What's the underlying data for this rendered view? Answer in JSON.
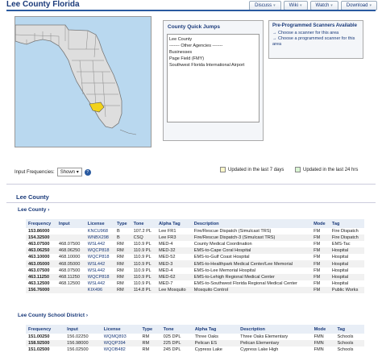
{
  "page": {
    "title": "Lee County Florida"
  },
  "top_buttons": [
    {
      "label": "Discuss"
    },
    {
      "label": "Wiki"
    },
    {
      "label": "Watch"
    },
    {
      "label": "Download"
    }
  ],
  "quick_jumps": {
    "title": "County Quick Jumps",
    "items": [
      "Lee County",
      "------- Other Agencies -------",
      "Businesses",
      "Page Field (FMY)",
      "Southwest Florida International Airport"
    ]
  },
  "preprogrammed": {
    "title": "Pre-Programmed Scanners Available",
    "links": [
      "→ Choose a scanner for this area",
      "→ Choose a programmed scanner for this area"
    ]
  },
  "filters": {
    "label": "Input Frequencies:",
    "selected": "Shown",
    "legend_yellow": "Updated in the last 7 days",
    "legend_green": "Updated in the last 24 hrs",
    "colors": {
      "yellow": "#fdf7c8",
      "green": "#d9f5d3"
    }
  },
  "section": {
    "title": "Lee County"
  },
  "lee_county": {
    "title": "Lee County ›",
    "headers": [
      "Frequency",
      "Input",
      "License",
      "Type",
      "Tone",
      "Alpha Tag",
      "Description",
      "Mode",
      "Tag"
    ],
    "rows": [
      [
        "153.86000",
        "",
        "KNCU968",
        "B",
        "107.2 PL",
        "Lee FR1",
        "Fire/Rescue Dispatch (Simulcast TRS)",
        "FM",
        "Fire Dispatch"
      ],
      [
        "154.32500",
        "",
        "WNBX298",
        "B",
        "CSQ",
        "Lee FR3",
        "Fire/Rescue Dispatch-3 (Simulcast TRS)",
        "FM",
        "Fire Dispatch"
      ],
      [
        "463.07500",
        "468.07500",
        "WSL442",
        "RM",
        "110.9 PL",
        "MED-4",
        "County Medical Coordination",
        "FM",
        "EMS-Tac"
      ],
      [
        "463.06250",
        "468.06250",
        "WQCP818",
        "RM",
        "110.9 PL",
        "MED-32",
        "EMS-to-Cape Coral Hospital",
        "FM",
        "Hospital"
      ],
      [
        "463.10000",
        "468.10000",
        "WQCP818",
        "RM",
        "110.9 PL",
        "MED-52",
        "EMS-to-Gulf Coast Hospital",
        "FM",
        "Hospital"
      ],
      [
        "463.05000",
        "468.05000",
        "WSL442",
        "RM",
        "110.9 PL",
        "MED-3",
        "EMS-to-Healthpark Medical Center/Lee Memorial",
        "FM",
        "Hospital"
      ],
      [
        "463.07500",
        "468.07500",
        "WSL442",
        "RM",
        "110.9 PL",
        "MED-4",
        "EMS-to-Lee Memorial Hospital",
        "FM",
        "Hospital"
      ],
      [
        "463.11250",
        "468.11250",
        "WQCP818",
        "RM",
        "110.9 PL",
        "MED-62",
        "EMS-to-Lehigh Regional Medical Center",
        "FM",
        "Hospital"
      ],
      [
        "463.12500",
        "468.12500",
        "WSL442",
        "RM",
        "110.9 PL",
        "MED-7",
        "EMS-to-Southwest Florida Regional Medical Center",
        "FM",
        "Hospital"
      ],
      [
        "156.76000",
        "",
        "KIX496",
        "RM",
        "114.8 PL",
        "Lee Mosquito",
        "Mosquito Control",
        "FM",
        "Public Works"
      ]
    ]
  },
  "school_district": {
    "title": "Lee County School District ›",
    "headers": [
      "Frequency",
      "Input",
      "License",
      "Type",
      "Tone",
      "Alpha Tag",
      "Description",
      "Mode",
      "Tag"
    ],
    "rows": [
      [
        "151.00250",
        "156.02250",
        "WQMQ893",
        "RM",
        "025 DPL",
        "Three Oaks",
        "Three Oaks Elementary",
        "FMN",
        "Schools"
      ],
      [
        "158.92500",
        "156.98000",
        "WQQP394",
        "RM",
        "225 DPL",
        "Pelican ES",
        "Pelican Elementary",
        "FMN",
        "Schools"
      ],
      [
        "151.02500",
        "156.02500",
        "WQOB482",
        "RM",
        "245 DPL",
        "Cypress Lake",
        "Cypress Lake High",
        "FMN",
        "Schools"
      ]
    ]
  }
}
